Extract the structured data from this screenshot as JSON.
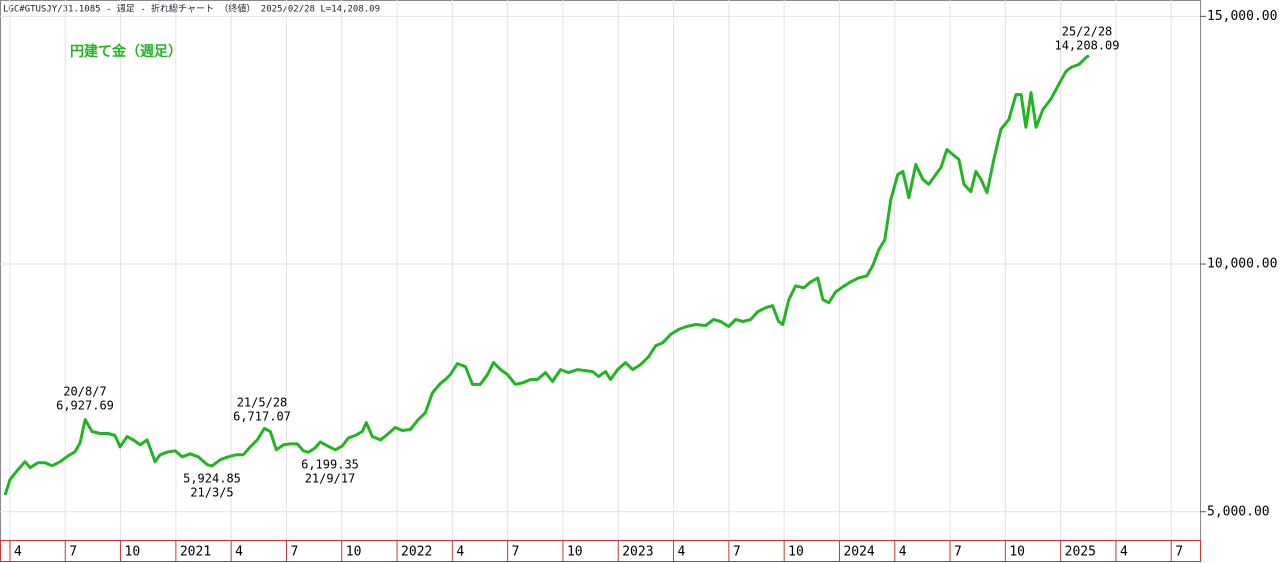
{
  "chart_data": {
    "type": "line",
    "title": "LGC#GTUSJY/31.1085 - 週足 - 折れ線チャート （終値）  2025/02/28  L=14,208.09",
    "x": [
      2020.228,
      2020.25,
      2020.286,
      2020.318,
      2020.341,
      2020.377,
      2020.409,
      2020.44,
      2020.477,
      2020.513,
      2020.544,
      2020.567,
      2020.59,
      2020.621,
      2020.658,
      2020.694,
      2020.725,
      2020.748,
      2020.78,
      2020.807,
      2020.839,
      2020.87,
      2020.906,
      2020.929,
      2020.965,
      2020.997,
      2021.029,
      2021.065,
      2021.101,
      2021.142,
      2021.164,
      2021.201,
      2021.237,
      2021.273,
      2021.305,
      2021.336,
      2021.368,
      2021.4,
      2021.427,
      2021.454,
      2021.486,
      2021.517,
      2021.549,
      2021.576,
      2021.599,
      2021.63,
      2021.653,
      2021.685,
      2021.721,
      2021.753,
      2021.78,
      2021.811,
      2021.843,
      2021.861,
      2021.888,
      2021.925,
      2021.961,
      2021.992,
      2022.024,
      2022.06,
      2022.096,
      2022.128,
      2022.16,
      2022.196,
      2022.219,
      2022.241,
      2022.273,
      2022.309,
      2022.341,
      2022.377,
      2022.409,
      2022.436,
      2022.468,
      2022.499,
      2022.535,
      2022.572,
      2022.603,
      2022.635,
      2022.671,
      2022.703,
      2022.739,
      2022.775,
      2022.816,
      2022.852,
      2022.884,
      2022.911,
      2022.943,
      2022.965,
      2022.997,
      2023.033,
      2023.065,
      2023.101,
      2023.137,
      2023.169,
      2023.201,
      2023.237,
      2023.273,
      2023.309,
      2023.35,
      2023.395,
      2023.431,
      2023.463,
      2023.499,
      2023.531,
      2023.563,
      2023.599,
      2023.631,
      2023.667,
      2023.698,
      2023.725,
      2023.744,
      2023.771,
      2023.802,
      2023.839,
      2023.87,
      2023.902,
      2023.925,
      2023.952,
      2023.983,
      2024.015,
      2024.051,
      2024.087,
      2024.124,
      2024.151,
      2024.178,
      2024.205,
      2024.232,
      2024.264,
      2024.287,
      2024.314,
      2024.345,
      2024.377,
      2024.404,
      2024.436,
      2024.459,
      2024.486,
      2024.513,
      2024.54,
      2024.563,
      2024.594,
      2024.617,
      2024.64,
      2024.667,
      2024.698,
      2024.73,
      2024.766,
      2024.798,
      2024.821,
      2024.843,
      2024.866,
      2024.889,
      2024.92,
      2024.956,
      2024.992,
      2025.024,
      2025.047,
      2025.083,
      2025.114,
      2025.128
    ],
    "series": [
      {
        "name": "円建て金（週足）",
        "color": "#22b422",
        "values": [
          5340,
          5650,
          5850,
          6010,
          5890,
          5990,
          5990,
          5930,
          6010,
          6130,
          6210,
          6390,
          6860,
          6620,
          6580,
          6580,
          6540,
          6310,
          6520,
          6450,
          6350,
          6450,
          6010,
          6150,
          6210,
          6230,
          6110,
          6170,
          6110,
          5950,
          5925,
          6050,
          6110,
          6150,
          6150,
          6310,
          6450,
          6680,
          6620,
          6250,
          6350,
          6370,
          6370,
          6230,
          6200,
          6290,
          6410,
          6330,
          6250,
          6330,
          6490,
          6540,
          6620,
          6800,
          6520,
          6450,
          6580,
          6700,
          6640,
          6660,
          6860,
          7000,
          7400,
          7590,
          7670,
          7770,
          7990,
          7930,
          7570,
          7570,
          7770,
          8010,
          7870,
          7770,
          7570,
          7610,
          7670,
          7670,
          7810,
          7630,
          7870,
          7810,
          7870,
          7850,
          7830,
          7730,
          7830,
          7670,
          7870,
          8010,
          7870,
          7970,
          8130,
          8350,
          8410,
          8580,
          8680,
          8740,
          8780,
          8760,
          8880,
          8840,
          8740,
          8880,
          8840,
          8880,
          9040,
          9120,
          9160,
          8840,
          8780,
          9280,
          9560,
          9520,
          9640,
          9720,
          9280,
          9220,
          9440,
          9540,
          9640,
          9720,
          9760,
          9970,
          10290,
          10490,
          11300,
          11810,
          11870,
          11340,
          12010,
          11710,
          11610,
          11810,
          11950,
          12310,
          12210,
          12110,
          11610,
          11460,
          11870,
          11710,
          11440,
          12110,
          12720,
          12920,
          13420,
          13420,
          12760,
          13460,
          12760,
          13120,
          13330,
          13630,
          13890,
          13970,
          14030,
          14170,
          14208.09
        ]
      }
    ],
    "xlim": [
      2020.205,
      2025.63
    ],
    "xticks": [
      {
        "value": 2020.25,
        "label": "4"
      },
      {
        "value": 2020.5,
        "label": "7"
      },
      {
        "value": 2020.75,
        "label": "10"
      },
      2021,
      {
        "value": 2021.25,
        "label": "4"
      },
      {
        "value": 2021.5,
        "label": "7"
      },
      {
        "value": 2021.75,
        "label": "10"
      },
      2022,
      {
        "value": 2022.25,
        "label": "4"
      },
      {
        "value": 2022.5,
        "label": "7"
      },
      {
        "value": 2022.75,
        "label": "10"
      },
      2023,
      {
        "value": 2023.25,
        "label": "4"
      },
      {
        "value": 2023.5,
        "label": "7"
      },
      {
        "value": 2023.75,
        "label": "10"
      },
      2024,
      {
        "value": 2024.25,
        "label": "4"
      },
      {
        "value": 2024.5,
        "label": "7"
      },
      {
        "value": 2024.75,
        "label": "10"
      },
      2025,
      {
        "value": 2025.25,
        "label": "4"
      },
      {
        "value": 2025.5,
        "label": "7"
      }
    ],
    "ylim": [
      4430,
      15330
    ],
    "yticks": [
      {
        "value": 5000,
        "label": "5,000.00"
      },
      {
        "value": 10000,
        "label": "10,000.00"
      },
      {
        "value": 15000,
        "label": "15,000.00"
      }
    ],
    "grid": true,
    "annotations": [
      {
        "text": [
          "20/8/7",
          "6,927.69"
        ]
      },
      {
        "text": [
          "21/5/28",
          "6,717.07"
        ]
      },
      {
        "text": [
          "5,924.85",
          "21/3/5"
        ]
      },
      {
        "text": [
          "6,199.35",
          "21/9/17"
        ]
      },
      {
        "text": [
          "25/2/28",
          "14,208.09"
        ]
      }
    ]
  }
}
